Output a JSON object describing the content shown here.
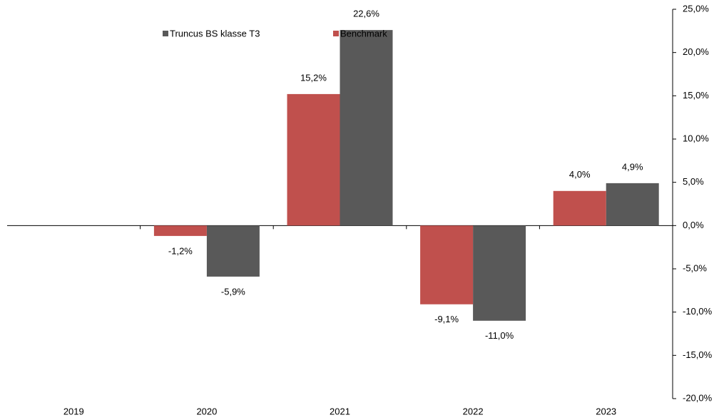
{
  "chart_data": {
    "type": "bar",
    "categories": [
      "2019",
      "2020",
      "2021",
      "2022",
      "2023"
    ],
    "series": [
      {
        "name": "Truncus BS klasse T3",
        "color": "#595959",
        "values": [
          null,
          -5.9,
          22.6,
          -11.0,
          4.9
        ],
        "value_labels": [
          null,
          "-5,9%",
          "22,6%",
          "-11,0%",
          "4,9%"
        ]
      },
      {
        "name": "Benchmark",
        "color": "#c0504d",
        "values": [
          null,
          -1.2,
          15.2,
          -9.1,
          4.0
        ],
        "value_labels": [
          null,
          "-1,2%",
          "15,2%",
          "-9,1%",
          "4,0%"
        ]
      }
    ],
    "ylim": [
      -20,
      25
    ],
    "yticks": [
      {
        "value": -20,
        "label": "-20,0%"
      },
      {
        "value": -15,
        "label": "-15,0%"
      },
      {
        "value": -10,
        "label": "-10,0%"
      },
      {
        "value": -5,
        "label": "-5,0%"
      },
      {
        "value": 0,
        "label": "0,0%"
      },
      {
        "value": 5,
        "label": "5,0%"
      },
      {
        "value": 10,
        "label": "10,0%"
      },
      {
        "value": 15,
        "label": "15,0%"
      },
      {
        "value": 20,
        "label": "20,0%"
      },
      {
        "value": 25,
        "label": "25,0%"
      }
    ],
    "y_axis_side": "right",
    "grid": false,
    "legend": "top"
  }
}
